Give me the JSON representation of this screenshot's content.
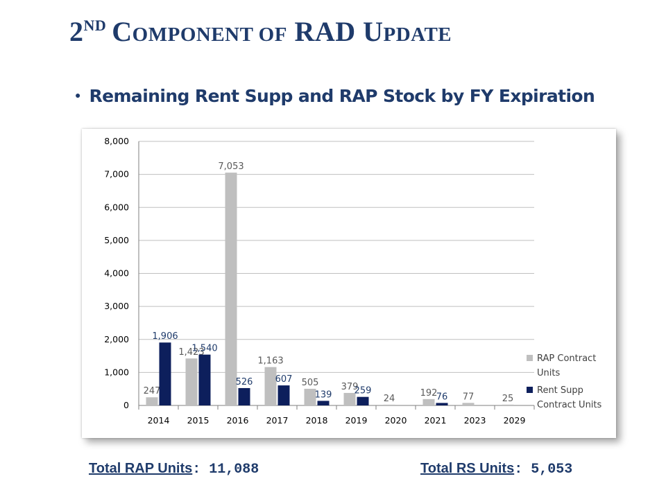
{
  "title": {
    "part1": "2",
    "part2": "ND",
    "part3": "C",
    "part4": "OMPONENT OF",
    "part5": "RAD U",
    "part6": "PDATE"
  },
  "bullet": "Remaining Rent Supp and RAP Stock by FY Expiration",
  "chart_data": {
    "type": "bar",
    "categories": [
      "2014",
      "2015",
      "2016",
      "2017",
      "2018",
      "2019",
      "2020",
      "2021",
      "2023",
      "2029"
    ],
    "series": [
      {
        "name": "RAP Contract Units",
        "color": "#bfbfbf",
        "label_color": "#595959",
        "values": [
          247,
          1423,
          7053,
          1163,
          505,
          379,
          24,
          192,
          77,
          25
        ]
      },
      {
        "name": "Rent Supp Contract Units",
        "color": "#0d1f5c",
        "label_color": "#1f3b6b",
        "values": [
          1906,
          1540,
          526,
          607,
          139,
          259,
          null,
          76,
          null,
          null
        ]
      }
    ],
    "ylim": [
      0,
      8000
    ],
    "yticks": [
      0,
      1000,
      2000,
      3000,
      4000,
      5000,
      6000,
      7000,
      8000
    ],
    "grid": true,
    "legend_position": "right"
  },
  "legend": {
    "rap_line1": "RAP Contract",
    "rap_line2": "Units",
    "rs_line1": "Rent Supp",
    "rs_line2": "Contract Units"
  },
  "totals": {
    "rap_label": "Total RAP Units",
    "rap_value": ": 11,088",
    "rs_label": "Total RS Units",
    "rs_value": ": 5,053"
  }
}
